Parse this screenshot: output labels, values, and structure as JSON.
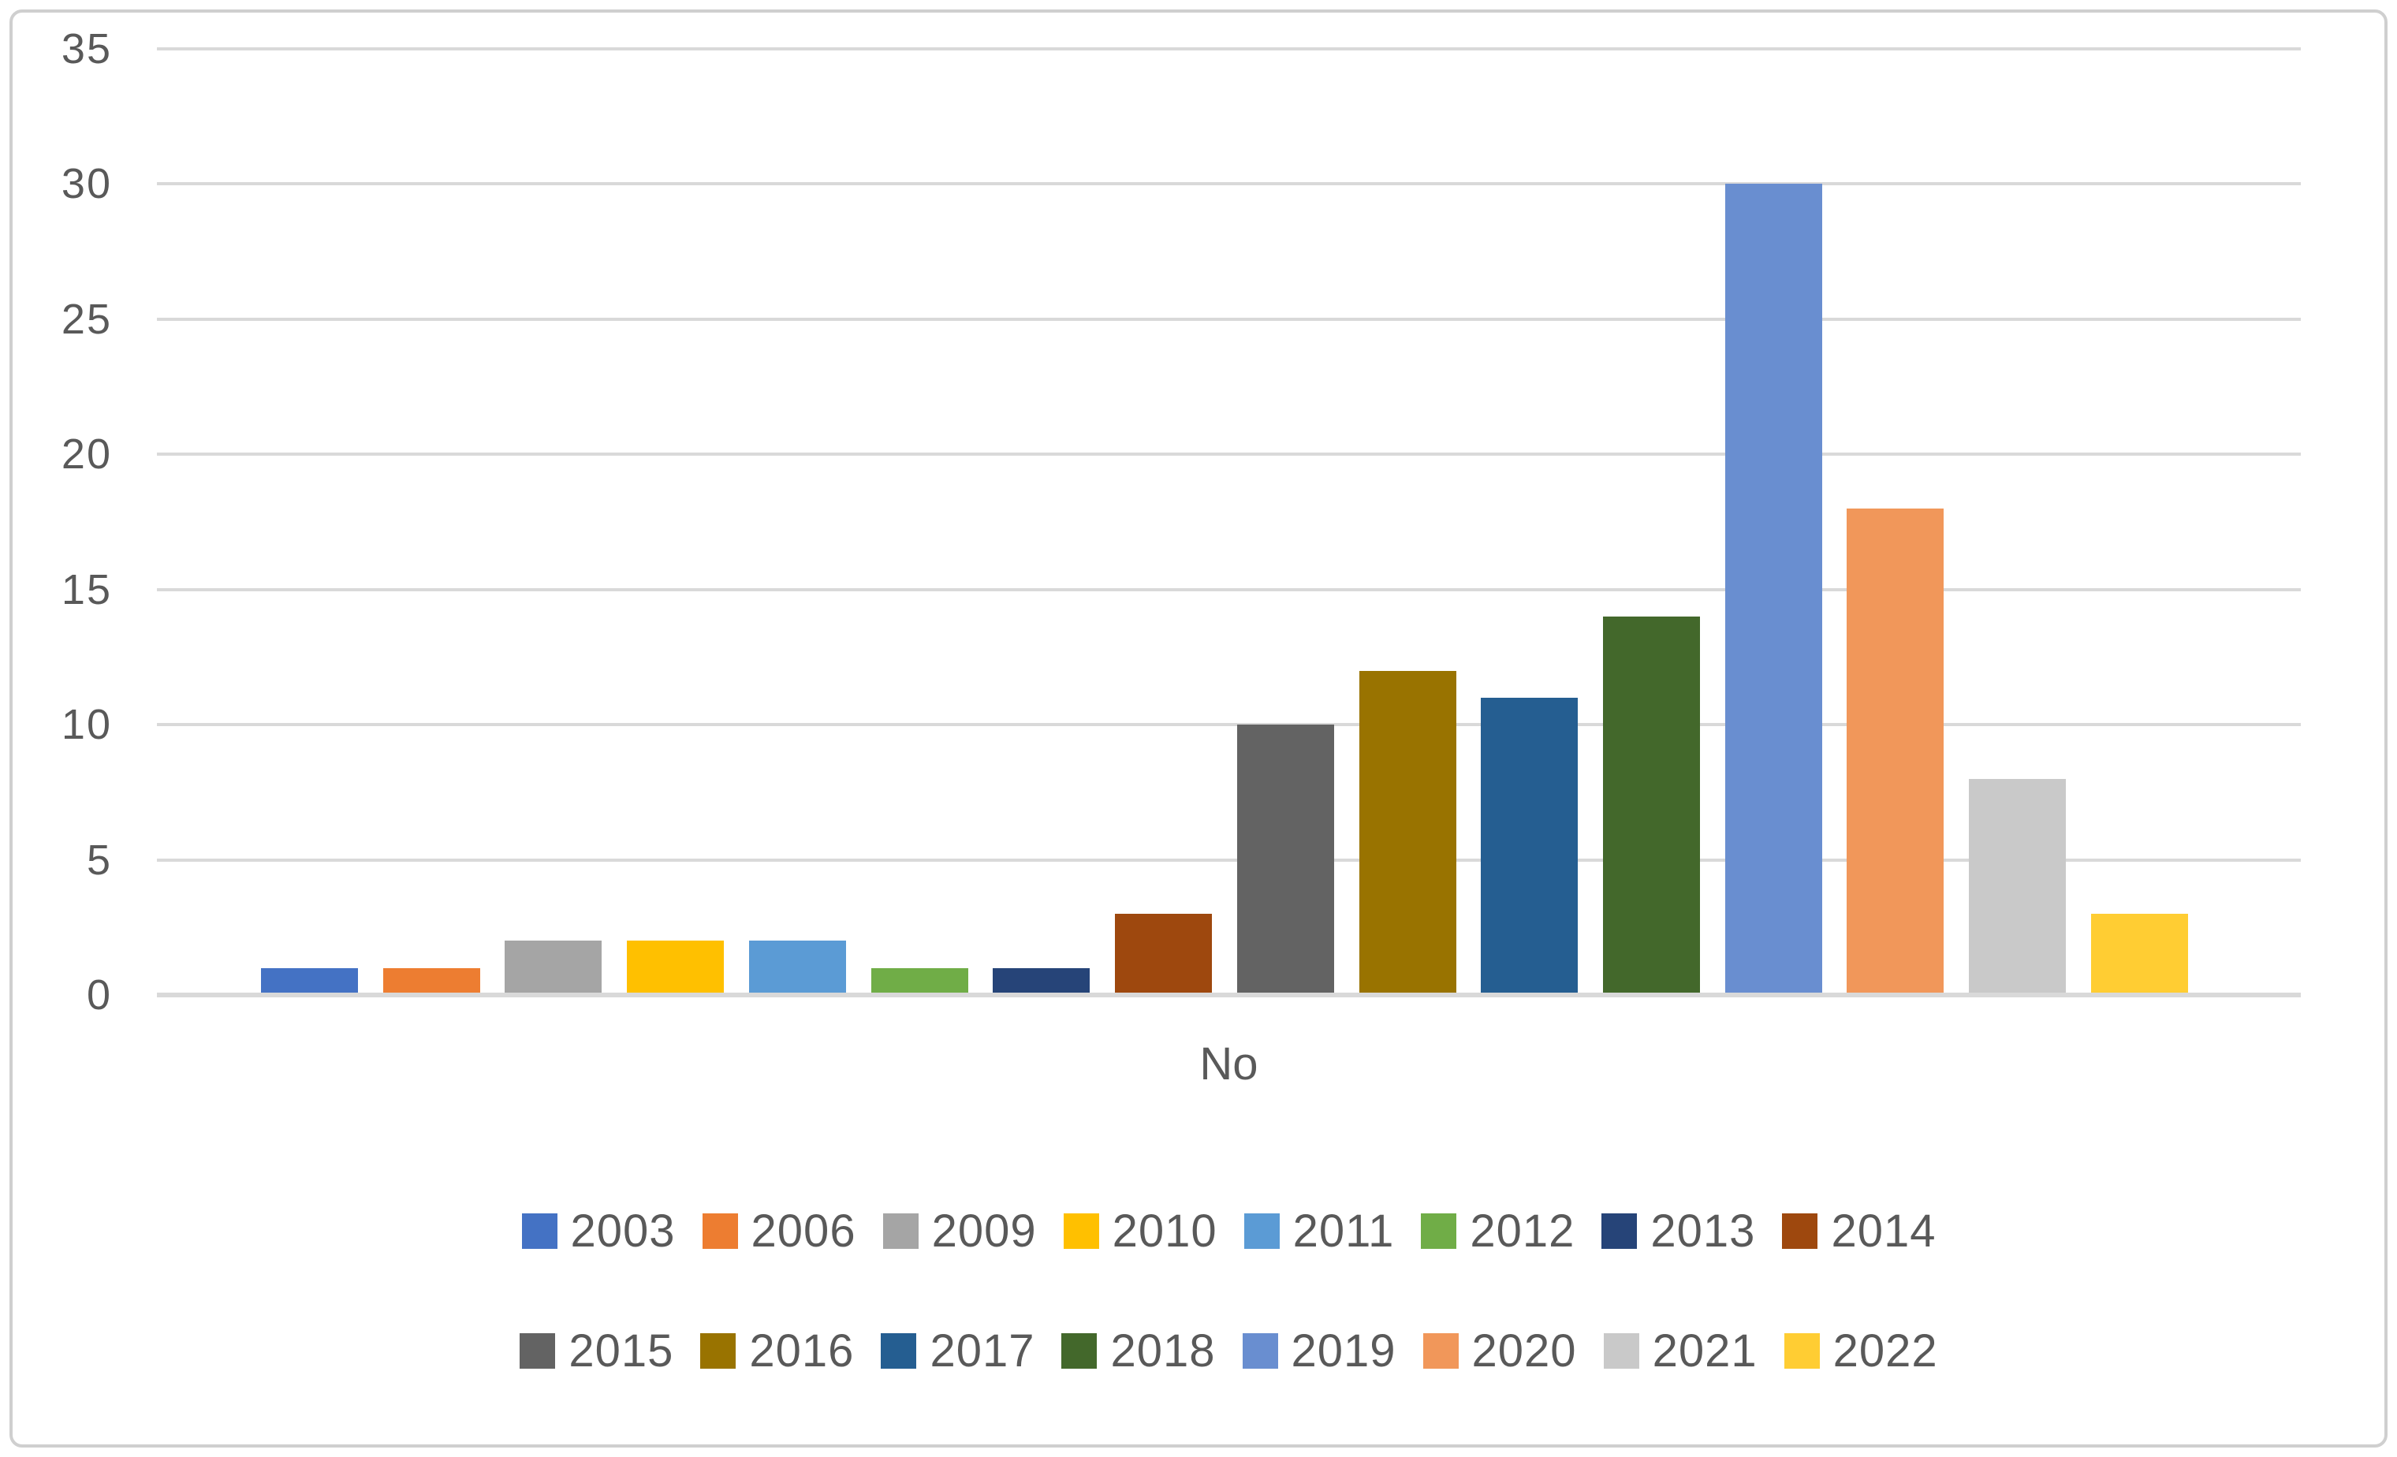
{
  "chart_data": {
    "type": "bar",
    "title": "",
    "xlabel": "No",
    "ylabel": "",
    "ylim": [
      0,
      35
    ],
    "yticks": [
      35,
      30,
      25,
      20,
      15,
      10,
      5,
      0
    ],
    "grid": true,
    "legend_position": "bottom",
    "legend_rows": 2,
    "categories": [
      "2003",
      "2006",
      "2009",
      "2010",
      "2011",
      "2012",
      "2013",
      "2014",
      "2015",
      "2016",
      "2017",
      "2018",
      "2019",
      "2020",
      "2021",
      "2022"
    ],
    "values": [
      1,
      1,
      2,
      2,
      2,
      1,
      1,
      3,
      10,
      12,
      11,
      14,
      30,
      18,
      8,
      3
    ],
    "colors": [
      "#4472C4",
      "#ED7D31",
      "#A5A5A5",
      "#FFC000",
      "#5B9BD5",
      "#70AD47",
      "#264478",
      "#9E480E",
      "#636363",
      "#997300",
      "#255E91",
      "#43682B",
      "#698ED0",
      "#F1975A",
      "#C9C9C9",
      "#FFCD33"
    ],
    "series": [
      {
        "label": "2003",
        "color": "#4472C4",
        "value": 1
      },
      {
        "label": "2006",
        "color": "#ED7D31",
        "value": 1
      },
      {
        "label": "2009",
        "color": "#A5A5A5",
        "value": 2
      },
      {
        "label": "2010",
        "color": "#FFC000",
        "value": 2
      },
      {
        "label": "2011",
        "color": "#5B9BD5",
        "value": 2
      },
      {
        "label": "2012",
        "color": "#70AD47",
        "value": 1
      },
      {
        "label": "2013",
        "color": "#264478",
        "value": 1
      },
      {
        "label": "2014",
        "color": "#9E480E",
        "value": 3
      },
      {
        "label": "2015",
        "color": "#636363",
        "value": 10
      },
      {
        "label": "2016",
        "color": "#997300",
        "value": 12
      },
      {
        "label": "2017",
        "color": "#255E91",
        "value": 11
      },
      {
        "label": "2018",
        "color": "#43682B",
        "value": 14
      },
      {
        "label": "2019",
        "color": "#698ED0",
        "value": 30
      },
      {
        "label": "2020",
        "color": "#F1975A",
        "value": 18
      },
      {
        "label": "2021",
        "color": "#C9C9C9",
        "value": 8
      },
      {
        "label": "2022",
        "color": "#FFCD33",
        "value": 3
      }
    ],
    "axis_color": "#d9d9d9",
    "tick_label_color": "#595959"
  }
}
